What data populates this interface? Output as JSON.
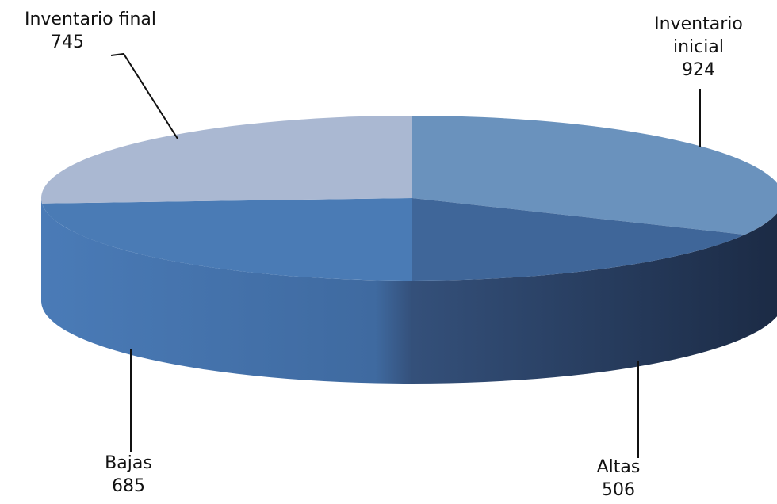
{
  "chart_data": {
    "type": "pie",
    "style": "3d-exploded-none",
    "title": "",
    "slices": [
      {
        "label": "Inventario inicial",
        "value": 924,
        "color": "#6a92bd"
      },
      {
        "label": "Altas",
        "value": 506,
        "color": "#3f6699"
      },
      {
        "label": "Bajas",
        "value": 685,
        "color": "#4a7bb5"
      },
      {
        "label": "Inventario final",
        "value": 745,
        "color": "#aab8d2"
      }
    ],
    "labels": {
      "inicial_line1": "Inventario",
      "inicial_line2": "inicial",
      "inicial_value": "924",
      "altas_name": "Altas",
      "altas_value": "506",
      "bajas_name": "Bajas",
      "bajas_value": "685",
      "final_name": "Inventario final",
      "final_value": "745"
    }
  }
}
